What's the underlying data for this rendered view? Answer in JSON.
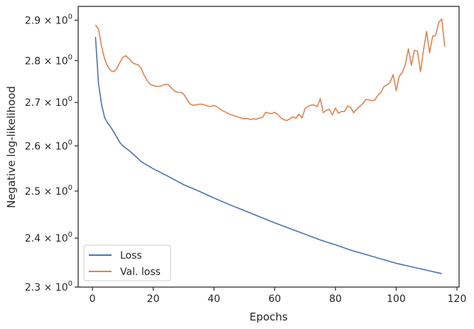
{
  "chart_data": {
    "type": "line",
    "title": "",
    "xlabel": "Epochs",
    "ylabel": "Negative log-likelihood",
    "xlim": [
      -4.7,
      120.7
    ],
    "ylim": [
      2.3,
      2.935
    ],
    "yscale": "log",
    "grid": false,
    "legend_position": "lower-left",
    "x_ticks": [
      0,
      20,
      40,
      60,
      80,
      100,
      120
    ],
    "x_tick_labels": [
      "0",
      "20",
      "40",
      "60",
      "80",
      "100",
      "120"
    ],
    "y_ticks": [
      2.3,
      2.4,
      2.5,
      2.6,
      2.7,
      2.8,
      2.9
    ],
    "y_tick_labels": [
      {
        "base": "2.3",
        "times": "×",
        "pow": "10",
        "exp": "0"
      },
      {
        "base": "2.4",
        "times": "×",
        "pow": "10",
        "exp": "0"
      },
      {
        "base": "2.5",
        "times": "×",
        "pow": "10",
        "exp": "0"
      },
      {
        "base": "2.6",
        "times": "×",
        "pow": "10",
        "exp": "0"
      },
      {
        "base": "2.7",
        "times": "×",
        "pow": "10",
        "exp": "0"
      },
      {
        "base": "2.8",
        "times": "×",
        "pow": "10",
        "exp": "0"
      },
      {
        "base": "2.9",
        "times": "×",
        "pow": "10",
        "exp": "0"
      }
    ],
    "series": [
      {
        "name": "Loss",
        "color": "#4c72b0",
        "points": [
          [
            1,
            2.858
          ],
          [
            2,
            2.745
          ],
          [
            3,
            2.695
          ],
          [
            4,
            2.665
          ],
          [
            5,
            2.652
          ],
          [
            6,
            2.643
          ],
          [
            7,
            2.632
          ],
          [
            8,
            2.62
          ],
          [
            9,
            2.608
          ],
          [
            10,
            2.6
          ],
          [
            12,
            2.59
          ],
          [
            14,
            2.578
          ],
          [
            16,
            2.565
          ],
          [
            18,
            2.557
          ],
          [
            20,
            2.549
          ],
          [
            25,
            2.532
          ],
          [
            30,
            2.514
          ],
          [
            35,
            2.5
          ],
          [
            40,
            2.485
          ],
          [
            45,
            2.471
          ],
          [
            50,
            2.458
          ],
          [
            55,
            2.445
          ],
          [
            60,
            2.432
          ],
          [
            65,
            2.42
          ],
          [
            70,
            2.408
          ],
          [
            75,
            2.396
          ],
          [
            80,
            2.386
          ],
          [
            85,
            2.375
          ],
          [
            90,
            2.366
          ],
          [
            95,
            2.357
          ],
          [
            100,
            2.348
          ],
          [
            105,
            2.341
          ],
          [
            110,
            2.334
          ],
          [
            115,
            2.327
          ]
        ]
      },
      {
        "name": "Val. loss",
        "color": "#dd8452",
        "points": [
          [
            1,
            2.888
          ],
          [
            2,
            2.878
          ],
          [
            3,
            2.835
          ],
          [
            4,
            2.805
          ],
          [
            5,
            2.786
          ],
          [
            6,
            2.776
          ],
          [
            7,
            2.773
          ],
          [
            8,
            2.78
          ],
          [
            9,
            2.795
          ],
          [
            10,
            2.808
          ],
          [
            11,
            2.812
          ],
          [
            12,
            2.805
          ],
          [
            13,
            2.796
          ],
          [
            14,
            2.792
          ],
          [
            15,
            2.79
          ],
          [
            16,
            2.782
          ],
          [
            17,
            2.765
          ],
          [
            18,
            2.752
          ],
          [
            19,
            2.743
          ],
          [
            20,
            2.74
          ],
          [
            21,
            2.738
          ],
          [
            22,
            2.738
          ],
          [
            23,
            2.74
          ],
          [
            24,
            2.743
          ],
          [
            25,
            2.742
          ],
          [
            26,
            2.734
          ],
          [
            27,
            2.727
          ],
          [
            28,
            2.724
          ],
          [
            29,
            2.724
          ],
          [
            30,
            2.72
          ],
          [
            31,
            2.709
          ],
          [
            32,
            2.697
          ],
          [
            33,
            2.694
          ],
          [
            34,
            2.694
          ],
          [
            35,
            2.696
          ],
          [
            36,
            2.696
          ],
          [
            37,
            2.694
          ],
          [
            38,
            2.691
          ],
          [
            39,
            2.691
          ],
          [
            40,
            2.693
          ],
          [
            41,
            2.69
          ],
          [
            42,
            2.685
          ],
          [
            43,
            2.68
          ],
          [
            44,
            2.677
          ],
          [
            45,
            2.673
          ],
          [
            46,
            2.671
          ],
          [
            47,
            2.668
          ],
          [
            48,
            2.666
          ],
          [
            49,
            2.664
          ],
          [
            50,
            2.662
          ],
          [
            51,
            2.663
          ],
          [
            52,
            2.66
          ],
          [
            53,
            2.662
          ],
          [
            54,
            2.661
          ],
          [
            55,
            2.664
          ],
          [
            56,
            2.665
          ],
          [
            57,
            2.677
          ],
          [
            58,
            2.675
          ],
          [
            59,
            2.674
          ],
          [
            60,
            2.677
          ],
          [
            61,
            2.672
          ],
          [
            62,
            2.664
          ],
          [
            63,
            2.66
          ],
          [
            64,
            2.658
          ],
          [
            65,
            2.662
          ],
          [
            66,
            2.667
          ],
          [
            67,
            2.663
          ],
          [
            68,
            2.673
          ],
          [
            69,
            2.664
          ],
          [
            70,
            2.686
          ],
          [
            71,
            2.691
          ],
          [
            72,
            2.694
          ],
          [
            73,
            2.694
          ],
          [
            74,
            2.69
          ],
          [
            75,
            2.709
          ],
          [
            76,
            2.676
          ],
          [
            77,
            2.682
          ],
          [
            78,
            2.684
          ],
          [
            79,
            2.671
          ],
          [
            80,
            2.687
          ],
          [
            81,
            2.675
          ],
          [
            82,
            2.679
          ],
          [
            83,
            2.679
          ],
          [
            84,
            2.692
          ],
          [
            85,
            2.688
          ],
          [
            86,
            2.676
          ],
          [
            87,
            2.684
          ],
          [
            88,
            2.691
          ],
          [
            89,
            2.697
          ],
          [
            90,
            2.707
          ],
          [
            91,
            2.706
          ],
          [
            92,
            2.704
          ],
          [
            93,
            2.706
          ],
          [
            94,
            2.717
          ],
          [
            95,
            2.724
          ],
          [
            96,
            2.738
          ],
          [
            97,
            2.741
          ],
          [
            98,
            2.748
          ],
          [
            99,
            2.766
          ],
          [
            100,
            2.728
          ],
          [
            101,
            2.762
          ],
          [
            102,
            2.771
          ],
          [
            103,
            2.79
          ],
          [
            104,
            2.829
          ],
          [
            105,
            2.789
          ],
          [
            106,
            2.825
          ],
          [
            107,
            2.823
          ],
          [
            108,
            2.773
          ],
          [
            109,
            2.826
          ],
          [
            110,
            2.872
          ],
          [
            111,
            2.819
          ],
          [
            112,
            2.86
          ],
          [
            113,
            2.862
          ],
          [
            114,
            2.894
          ],
          [
            115,
            2.903
          ],
          [
            116,
            2.834
          ]
        ]
      }
    ]
  }
}
